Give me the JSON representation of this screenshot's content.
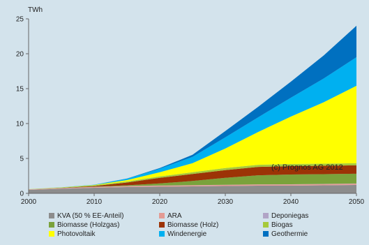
{
  "chart_data": {
    "type": "area",
    "stacked": true,
    "unit_label": "TWh",
    "annotation": "(c) Prognos AG 2012",
    "x": [
      2000,
      2005,
      2010,
      2015,
      2020,
      2025,
      2030,
      2035,
      2040,
      2045,
      2050
    ],
    "xticks": [
      2000,
      2010,
      2020,
      2030,
      2040,
      2050
    ],
    "yticks": [
      0,
      5,
      10,
      15,
      20,
      25
    ],
    "xlim": [
      2000,
      2050
    ],
    "ylim": [
      0,
      25
    ],
    "grid": false,
    "legend_position": "bottom",
    "series": [
      {
        "name": "KVA (50 % EE-Anteil)",
        "color": "#8c8c8c",
        "values": [
          0.5,
          0.65,
          0.8,
          0.9,
          0.95,
          1.0,
          1.05,
          1.1,
          1.1,
          1.15,
          1.2
        ]
      },
      {
        "name": "ARA",
        "color": "#e39b94",
        "values": [
          0.05,
          0.07,
          0.1,
          0.12,
          0.14,
          0.15,
          0.16,
          0.17,
          0.18,
          0.18,
          0.19
        ]
      },
      {
        "name": "Deponiegas",
        "color": "#b1a4c6",
        "values": [
          0.02,
          0.03,
          0.03,
          0.03,
          0.03,
          0.02,
          0.02,
          0.02,
          0.02,
          0.02,
          0.02
        ]
      },
      {
        "name": "Biomasse (Holzgas)",
        "color": "#7aa23b",
        "values": [
          0,
          0,
          0.02,
          0.1,
          0.3,
          0.6,
          1.0,
          1.3,
          1.4,
          1.4,
          1.4
        ]
      },
      {
        "name": "Biomasse (Holz)",
        "color": "#9c3306",
        "values": [
          0,
          0.03,
          0.1,
          0.4,
          0.8,
          1.0,
          1.1,
          1.2,
          1.2,
          1.2,
          1.2
        ]
      },
      {
        "name": "Biogas",
        "color": "#a6c93b",
        "values": [
          0.02,
          0.05,
          0.1,
          0.15,
          0.2,
          0.25,
          0.3,
          0.3,
          0.3,
          0.3,
          0.3
        ]
      },
      {
        "name": "Photovoltaik",
        "color": "#ffff00",
        "values": [
          0.01,
          0.02,
          0.05,
          0.2,
          0.6,
          1.3,
          2.8,
          4.7,
          6.8,
          8.8,
          11.1
        ]
      },
      {
        "name": "Windenergie",
        "color": "#00b0f0",
        "values": [
          0,
          0.01,
          0.04,
          0.2,
          0.5,
          0.9,
          1.6,
          2.1,
          2.7,
          3.4,
          4.1
        ]
      },
      {
        "name": "Geothermie",
        "color": "#0070c0",
        "values": [
          0,
          0,
          0,
          0.02,
          0.1,
          0.3,
          0.9,
          1.5,
          2.3,
          3.3,
          4.5
        ]
      }
    ]
  }
}
